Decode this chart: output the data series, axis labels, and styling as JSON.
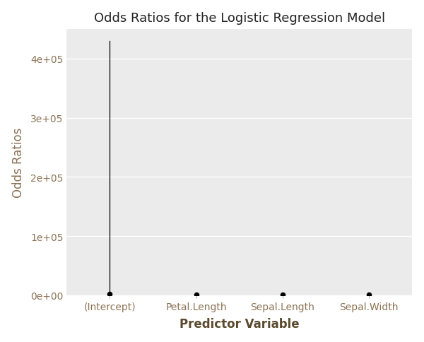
{
  "title": "Odds Ratios for the Logistic Regression Model",
  "xlabel": "Predictor Variable",
  "ylabel": "Odds Ratios",
  "categories": [
    "(Intercept)",
    "Petal.Length",
    "Sepal.Length",
    "Sepal.Width"
  ],
  "point_values": [
    2000,
    800,
    800,
    900
  ],
  "upper_ci": [
    430000,
    800,
    800,
    900
  ],
  "lower_ci": [
    2000,
    800,
    800,
    900
  ],
  "ylim": [
    0,
    450000
  ],
  "yticks": [
    0,
    100000,
    200000,
    300000,
    400000
  ],
  "ytick_labels": [
    "0e+00",
    "1e+05",
    "2e+05",
    "3e+05",
    "4e+05"
  ],
  "plot_bg_color": "#EBEBEB",
  "fig_bg_color": "#FFFFFF",
  "grid_color": "#FFFFFF",
  "point_color": "#000000",
  "line_color": "#000000",
  "tick_label_color": "#8B7355",
  "axis_label_color": "#5B4A2E",
  "title_color": "#222222",
  "title_fontsize": 13,
  "axis_label_fontsize": 12,
  "tick_fontsize": 10
}
